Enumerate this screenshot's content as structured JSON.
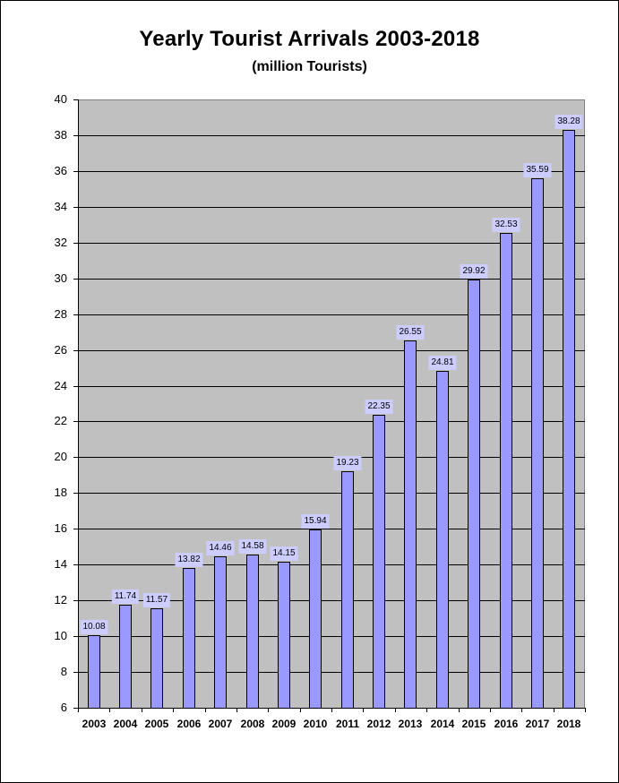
{
  "chart_data": {
    "type": "bar",
    "title": "Yearly Tourist Arrivals 2003-2018",
    "subtitle": "(million Tourists)",
    "xlabel": "",
    "ylabel": "",
    "categories": [
      "2003",
      "2004",
      "2005",
      "2006",
      "2007",
      "2008",
      "2009",
      "2010",
      "2011",
      "2012",
      "2013",
      "2014",
      "2015",
      "2016",
      "2017",
      "2018"
    ],
    "values": [
      10.08,
      11.74,
      11.57,
      13.82,
      14.46,
      14.58,
      14.15,
      15.94,
      19.23,
      22.35,
      26.55,
      24.81,
      29.92,
      32.53,
      35.59,
      38.28
    ],
    "value_labels": [
      "10.08",
      "11.74",
      "11.57",
      "13.82",
      "14.46",
      "14.58",
      "14.15",
      "15.94",
      "19.23",
      "22.35",
      "26.55",
      "24.81",
      "29.92",
      "32.53",
      "35.59",
      "38.28"
    ],
    "ylim": [
      6,
      40
    ],
    "yticks": [
      "40",
      "38",
      "36",
      "34",
      "32",
      "30",
      "28",
      "26",
      "24",
      "22",
      "20",
      "18",
      "16",
      "14",
      "12",
      "10",
      "8",
      "6"
    ],
    "ytick_values": [
      40,
      38,
      36,
      34,
      32,
      30,
      28,
      26,
      24,
      22,
      20,
      18,
      16,
      14,
      12,
      10,
      8,
      6
    ],
    "grid": true,
    "legend": null,
    "colors": {
      "bar_fill": "#9999ff",
      "bar_border": "#000000",
      "plot_background": "#c0c0c0",
      "label_background": "#ccccff",
      "gridline": "#000000"
    }
  }
}
